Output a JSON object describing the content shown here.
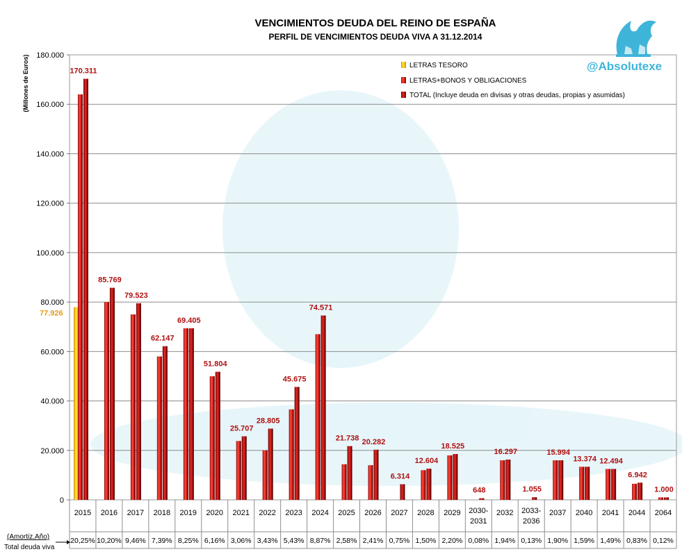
{
  "watermark": {
    "handle": "@Absolutexe",
    "logo_icon": "griffin-logo-icon"
  },
  "chart_data": {
    "type": "bar",
    "title": "VENCIMIENTOS DEUDA DEL REINO DE ESPAÑA",
    "subtitle": "PERFIL DE VENCIMIENTOS DEUDA VIVA A 31.12.2014",
    "ylabel": "(Millones de Euros)",
    "ylim": [
      0,
      180000
    ],
    "yticks": [
      0,
      20000,
      40000,
      60000,
      80000,
      100000,
      120000,
      140000,
      160000,
      180000
    ],
    "ytick_labels": [
      "0",
      "20.000",
      "40.000",
      "60.000",
      "80.000",
      "100.000",
      "120.000",
      "140.000",
      "160.000",
      "180.000"
    ],
    "grid": true,
    "legend_position": "top-right",
    "categories": [
      "2015",
      "2016",
      "2017",
      "2018",
      "2019",
      "2020",
      "2021",
      "2022",
      "2023",
      "2024",
      "2025",
      "2026",
      "2027",
      "2028",
      "2029",
      "2030-2031",
      "2032",
      "2033-2036",
      "2037",
      "2040",
      "2041",
      "2044",
      "2064"
    ],
    "category_labels": [
      [
        "2015"
      ],
      [
        "2016"
      ],
      [
        "2017"
      ],
      [
        "2018"
      ],
      [
        "2019"
      ],
      [
        "2020"
      ],
      [
        "2021"
      ],
      [
        "2022"
      ],
      [
        "2023"
      ],
      [
        "2024"
      ],
      [
        "2025"
      ],
      [
        "2026"
      ],
      [
        "2027"
      ],
      [
        "2028"
      ],
      [
        "2029"
      ],
      [
        "2030-",
        "2031"
      ],
      [
        "2032"
      ],
      [
        "2033-",
        "2036"
      ],
      [
        "2037"
      ],
      [
        "2040"
      ],
      [
        "2041"
      ],
      [
        "2044"
      ],
      [
        "2064"
      ]
    ],
    "series": [
      {
        "name": "LETRAS TESORO",
        "color": "#f2c200",
        "values": [
          77926,
          null,
          null,
          null,
          null,
          null,
          null,
          null,
          null,
          null,
          null,
          null,
          null,
          null,
          null,
          null,
          null,
          null,
          null,
          null,
          null,
          null,
          null
        ]
      },
      {
        "name": "LETRAS+BONOS Y OBLIGACIONES",
        "color": "#e21e1e",
        "values": [
          164000,
          80000,
          75000,
          58000,
          69400,
          50000,
          23800,
          20000,
          36600,
          67000,
          14400,
          14000,
          null,
          12000,
          18000,
          null,
          16000,
          null,
          15994,
          13374,
          12494,
          6500,
          1000
        ]
      },
      {
        "name": "TOTAL (Incluye deuda en divisas y otras deudas, propias y asumidas)",
        "color": "#b80f0f",
        "values": [
          170311,
          85769,
          79523,
          62147,
          69405,
          51804,
          25707,
          28805,
          45675,
          74571,
          21738,
          20282,
          6314,
          12604,
          18525,
          648,
          16297,
          1055,
          15994,
          13374,
          12494,
          6942,
          1000
        ]
      }
    ],
    "letras_label": "77.926",
    "total_labels": [
      "170.311",
      "85.769",
      "79.523",
      "62.147",
      "69.405",
      "51.804",
      "25.707",
      "28.805",
      "45.675",
      "74.571",
      "21.738",
      "20.282",
      "6.314",
      "12.604",
      "18.525",
      "648",
      "16.297",
      "1.055",
      "15.994",
      "13.374",
      "12.494",
      "6.942",
      "1.000"
    ],
    "table": {
      "row1_label": "(Amortiz.Año)",
      "row2_label": "Total deuda  viva",
      "percentages": [
        "20,25%",
        "10,20%",
        "9,46%",
        "7,39%",
        "8,25%",
        "6,16%",
        "3,06%",
        "3,43%",
        "5,43%",
        "8,87%",
        "2,58%",
        "2,41%",
        "0,75%",
        "1,50%",
        "2,20%",
        "0,08%",
        "1,94%",
        "0,13%",
        "1,90%",
        "1,59%",
        "1,49%",
        "0,83%",
        "0,12%"
      ]
    }
  }
}
